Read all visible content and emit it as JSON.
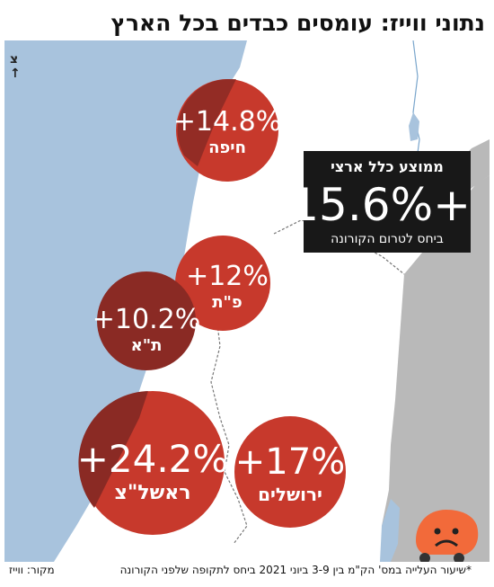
{
  "title": "נתוני ווייז: עומסים כבדים בכל הארץ",
  "north_label": "צ",
  "average": {
    "label": "ממוצע כלל ארצי",
    "value": "+15.6%",
    "subtitle": "ביחס לטרום הקורונה"
  },
  "cities": [
    {
      "name": "חיפה",
      "value": "+14.8%"
    },
    {
      "name": "פ\"ת",
      "value": "+12%"
    },
    {
      "name": "ת\"א",
      "value": "+10.2%"
    },
    {
      "name": "ראשל\"צ",
      "value": "+24.2%"
    },
    {
      "name": "ירושלים",
      "value": "+17%"
    }
  ],
  "footnote": "*שיעור העלייה במס' הק\"מ בין 3-9 ביוני 2021 ביחס לתקופה שלפני הקורונה",
  "source": "מקור: ווייז",
  "colors": {
    "sea": "#a8c3dd",
    "land": "#ffffff",
    "neighbor": "#b9b9b9",
    "circle": "#c7392c",
    "circle_dark": "#8a2a24",
    "box": "#181818"
  }
}
